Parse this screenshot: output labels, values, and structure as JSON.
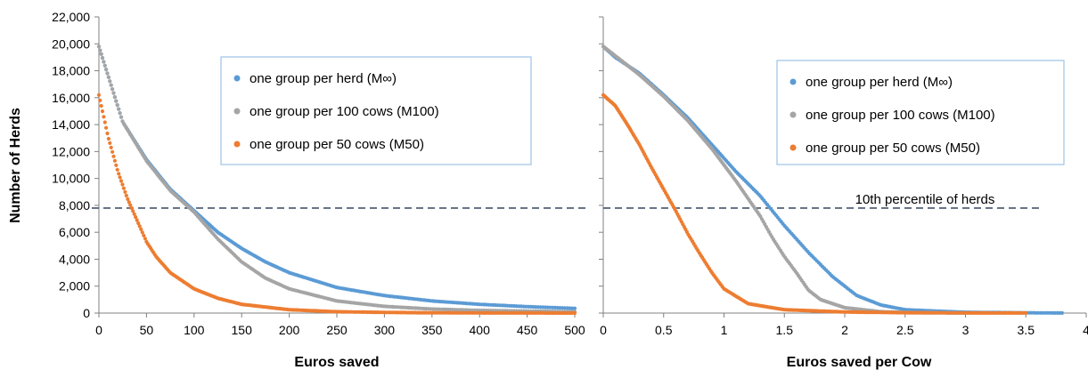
{
  "y_axis_title": "Number of Herds",
  "colors": {
    "M_inf": "#5B9BD5",
    "M100": "#A5A5A5",
    "M50": "#ED7D31",
    "reference_line": "#44546A",
    "legend_border": "#9DC3E6",
    "axis": "#808080"
  },
  "chart_data": [
    {
      "type": "scatter",
      "xlabel": "Euros saved",
      "ylabel": "Number of Herds",
      "xlim": [
        0,
        500
      ],
      "ylim": [
        0,
        22000
      ],
      "x_ticks": [
        "0",
        "50",
        "100",
        "150",
        "200",
        "250",
        "300",
        "350",
        "400",
        "450",
        "500"
      ],
      "y_ticks": [
        "0",
        "2,000",
        "4,000",
        "6,000",
        "8,000",
        "10,000",
        "12,000",
        "14,000",
        "16,000",
        "18,000",
        "20,000",
        "22,000"
      ],
      "legend_position": "upper-right",
      "grid": false,
      "reference_line": {
        "y": 7800,
        "label": ""
      },
      "series": [
        {
          "name": "one group per herd (M∞)",
          "color": "#5B9BD5",
          "x": [
            0,
            25,
            50,
            75,
            100,
            125,
            150,
            175,
            200,
            250,
            300,
            350,
            400,
            450,
            500
          ],
          "y": [
            19800,
            14200,
            11400,
            9200,
            7600,
            6000,
            4800,
            3800,
            3000,
            1900,
            1300,
            900,
            650,
            480,
            350
          ]
        },
        {
          "name": "one group per 100 cows (M100)",
          "color": "#A5A5A5",
          "x": [
            0,
            25,
            50,
            75,
            100,
            125,
            150,
            175,
            200,
            250,
            300,
            350,
            400,
            450,
            500
          ],
          "y": [
            19800,
            14200,
            11300,
            9100,
            7500,
            5500,
            3800,
            2600,
            1800,
            900,
            500,
            300,
            200,
            150,
            100
          ]
        },
        {
          "name": "one group per 50 cows (M50)",
          "color": "#ED7D31",
          "x": [
            0,
            10,
            20,
            30,
            40,
            50,
            60,
            75,
            100,
            125,
            150,
            200,
            250,
            300,
            350,
            400,
            450,
            500
          ],
          "y": [
            16200,
            13000,
            10500,
            8500,
            6900,
            5300,
            4200,
            3000,
            1800,
            1100,
            650,
            250,
            100,
            50,
            20,
            10,
            5,
            0
          ]
        }
      ]
    },
    {
      "type": "scatter",
      "xlabel": "Euros saved per Cow",
      "xlim": [
        0,
        4
      ],
      "ylim": [
        0,
        22000
      ],
      "x_ticks": [
        "0",
        "0.5",
        "1",
        "1.5",
        "2",
        "2.5",
        "3",
        "3.5",
        "4"
      ],
      "legend_position": "upper-right",
      "grid": false,
      "reference_line": {
        "y": 7800,
        "label": "10th percentile of herds"
      },
      "series": [
        {
          "name": "one group per herd (M∞)",
          "color": "#5B9BD5",
          "x": [
            0,
            0.1,
            0.3,
            0.5,
            0.7,
            0.9,
            1.1,
            1.3,
            1.5,
            1.7,
            1.9,
            2.1,
            2.3,
            2.5,
            3.0,
            3.5,
            3.8
          ],
          "y": [
            19800,
            19000,
            17800,
            16200,
            14500,
            12500,
            10500,
            8700,
            6500,
            4500,
            2700,
            1300,
            600,
            250,
            60,
            20,
            5
          ]
        },
        {
          "name": "one group per 100 cows (M100)",
          "color": "#A5A5A5",
          "x": [
            0,
            0.1,
            0.3,
            0.5,
            0.7,
            0.9,
            1.1,
            1.3,
            1.4,
            1.5,
            1.6,
            1.7,
            1.8,
            2.0,
            2.3,
            2.5,
            3.0
          ],
          "y": [
            19800,
            19100,
            17700,
            16100,
            14300,
            12200,
            9800,
            7200,
            5600,
            4200,
            3000,
            1700,
            1000,
            400,
            100,
            40,
            5
          ]
        },
        {
          "name": "one group per 50 cows (M50)",
          "color": "#ED7D31",
          "x": [
            0,
            0.1,
            0.2,
            0.3,
            0.4,
            0.5,
            0.6,
            0.7,
            0.8,
            0.9,
            1.0,
            1.2,
            1.5,
            2.0,
            2.5,
            3.0,
            3.5
          ],
          "y": [
            16200,
            15400,
            14000,
            12500,
            10800,
            9200,
            7600,
            5900,
            4400,
            3000,
            1800,
            700,
            250,
            80,
            30,
            10,
            5
          ]
        }
      ]
    }
  ]
}
